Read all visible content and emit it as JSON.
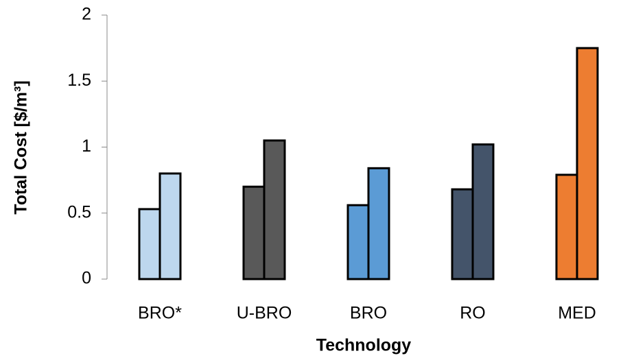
{
  "chart_data": {
    "type": "grouped-bar",
    "x_label": "Technology",
    "y_label": "Total Cost [$/m³]",
    "categories": [
      "BRO*",
      "U-BRO",
      "BRO",
      "RO",
      "MED"
    ],
    "colors": [
      "#bdd7ee",
      "#595959",
      "#5b9bd5",
      "#44546a",
      "#ed7d31"
    ],
    "series": [
      {
        "values": [
          0.53,
          0.7,
          0.56,
          0.68,
          0.79
        ]
      },
      {
        "values": [
          0.8,
          1.05,
          0.84,
          1.02,
          1.75
        ]
      }
    ],
    "ylim": [
      0,
      2
    ],
    "yticks": [
      0,
      0.5,
      1,
      1.5,
      2
    ],
    "grid": false
  }
}
